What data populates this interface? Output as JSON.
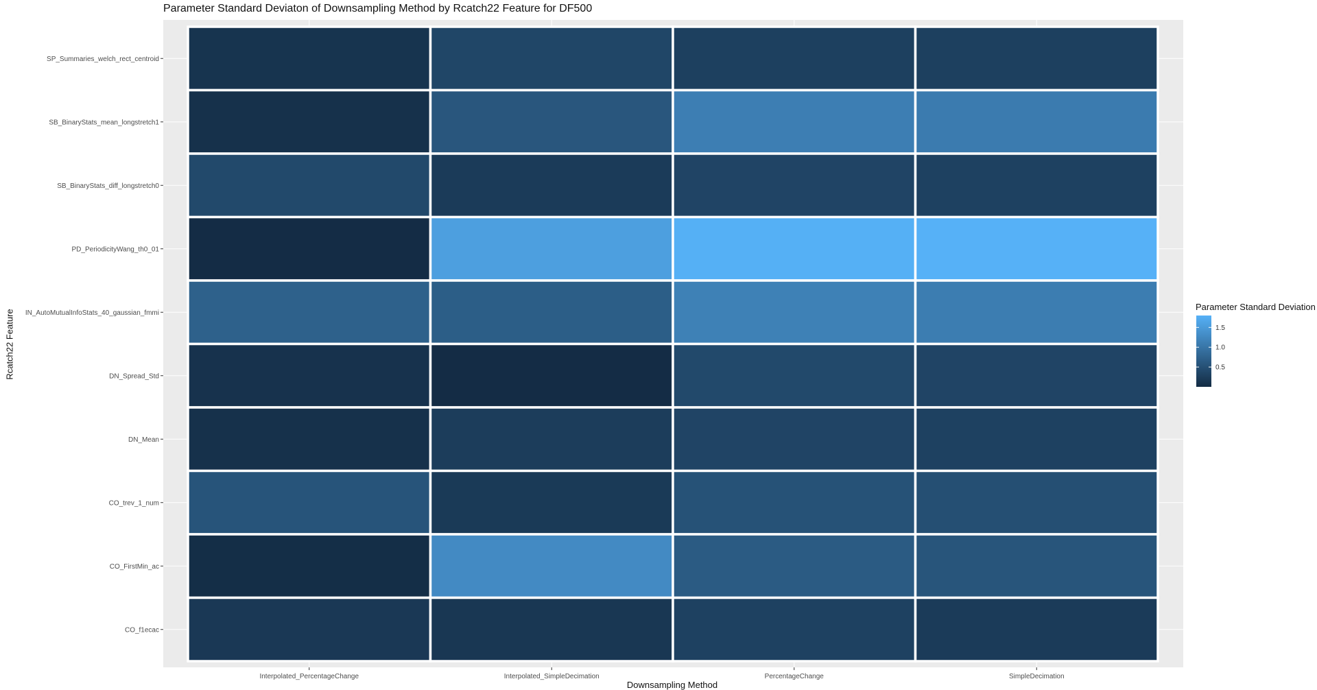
{
  "chart_data": {
    "type": "heatmap",
    "title": "Parameter Standard Deviaton of Downsampling Method by Rcatch22 Feature for DF500",
    "xlabel": "Downsampling Method",
    "ylabel": "Rcatch22 Feature",
    "x_categories": [
      "Interpolated_PercentageChange",
      "Interpolated_SimpleDecimation",
      "PercentageChange",
      "SimpleDecimation"
    ],
    "y_categories": [
      "SP_Summaries_welch_rect_centroid",
      "SB_BinaryStats_mean_longstretch1",
      "SB_BinaryStats_diff_longstretch0",
      "PD_PeriodicityWang_th0_01",
      "IN_AutoMutualInfoStats_40_gaussian_fmmi",
      "DN_Spread_Std",
      "DN_Mean",
      "CO_trev_1_num",
      "CO_FirstMin_ac",
      "CO_f1ecac"
    ],
    "values": [
      [
        0.12,
        0.36,
        0.28,
        0.28
      ],
      [
        0.08,
        0.58,
        1.12,
        1.08
      ],
      [
        0.4,
        0.22,
        0.34,
        0.3
      ],
      [
        0.02,
        1.56,
        1.78,
        1.8
      ],
      [
        0.72,
        0.68,
        1.15,
        1.1
      ],
      [
        0.1,
        0.02,
        0.4,
        0.34
      ],
      [
        0.08,
        0.24,
        0.34,
        0.3
      ],
      [
        0.55,
        0.2,
        0.52,
        0.48
      ],
      [
        0.04,
        1.28,
        0.64,
        0.56
      ],
      [
        0.18,
        0.16,
        0.3,
        0.22
      ]
    ],
    "legend": {
      "title": "Parameter Standard Deviation",
      "ticks": [
        0.5,
        1.0,
        1.5
      ],
      "tick_labels": [
        "0.5",
        "1.0",
        "1.5"
      ],
      "range": [
        0,
        1.8
      ],
      "position": "right"
    },
    "colors": {
      "low": "#132b43",
      "high": "#56b1f7",
      "panel": "#ebebeb",
      "gridline": "#ffffff",
      "tile_border": "#ffffff"
    }
  }
}
